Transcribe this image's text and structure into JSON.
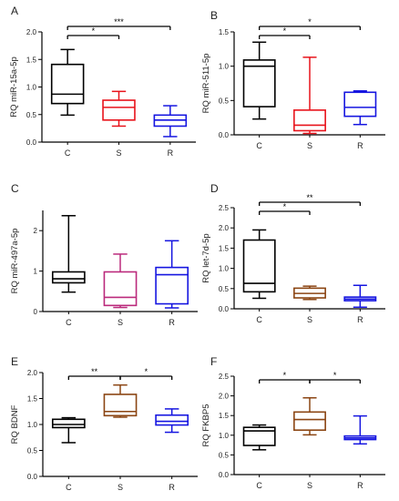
{
  "chart_data": [
    {
      "panel": "A",
      "type": "boxplot",
      "ylabel": "RQ miR-15a-5p",
      "ylim": [
        0,
        2.0
      ],
      "yticks": [
        0.0,
        0.5,
        1.0,
        1.5,
        2.0
      ],
      "categories": [
        "C",
        "S",
        "R"
      ],
      "colors": [
        "#000000",
        "#e8131b",
        "#1515e0"
      ],
      "boxes": [
        {
          "min": 0.49,
          "q1": 0.7,
          "median": 0.87,
          "q3": 1.41,
          "max": 1.68
        },
        {
          "min": 0.29,
          "q1": 0.4,
          "median": 0.63,
          "q3": 0.76,
          "max": 0.92
        },
        {
          "min": 0.1,
          "q1": 0.29,
          "median": 0.4,
          "q3": 0.49,
          "max": 0.66
        }
      ],
      "significance": [
        {
          "from": "C",
          "to": "S",
          "label": "*"
        },
        {
          "from": "C",
          "to": "R",
          "label": "***"
        }
      ]
    },
    {
      "panel": "B",
      "type": "boxplot",
      "ylabel": "RQ miR-511-5p",
      "ylim": [
        0,
        1.5
      ],
      "yticks": [
        0.0,
        0.5,
        1.0,
        1.5
      ],
      "categories": [
        "C",
        "S",
        "R"
      ],
      "colors": [
        "#000000",
        "#e8131b",
        "#1515e0"
      ],
      "boxes": [
        {
          "min": 0.23,
          "q1": 0.41,
          "median": 1.0,
          "q3": 1.09,
          "max": 1.35
        },
        {
          "min": 0.02,
          "q1": 0.06,
          "median": 0.14,
          "q3": 0.36,
          "max": 1.13
        },
        {
          "min": 0.15,
          "q1": 0.27,
          "median": 0.4,
          "q3": 0.62,
          "max": 0.64
        }
      ],
      "significance": [
        {
          "from": "C",
          "to": "S",
          "label": "*"
        },
        {
          "from": "C",
          "to": "R",
          "label": "*"
        }
      ]
    },
    {
      "panel": "C",
      "type": "boxplot",
      "ylabel": "RQ miR-497a-5p",
      "ylim": [
        0,
        2.5
      ],
      "yticks": [
        0,
        1,
        2
      ],
      "categories": [
        "C",
        "S",
        "R"
      ],
      "colors": [
        "#000000",
        "#bb2a7c",
        "#1515e0"
      ],
      "boxes": [
        {
          "min": 0.48,
          "q1": 0.71,
          "median": 0.81,
          "q3": 0.98,
          "max": 2.37
        },
        {
          "min": 0.1,
          "q1": 0.15,
          "median": 0.35,
          "q3": 0.98,
          "max": 1.42
        },
        {
          "min": 0.09,
          "q1": 0.19,
          "median": 0.91,
          "q3": 1.09,
          "max": 1.75
        }
      ],
      "significance": []
    },
    {
      "panel": "D",
      "type": "boxplot",
      "ylabel": "RQ let-7d-5p",
      "ylim": [
        0,
        2.5
      ],
      "yticks": [
        0.0,
        0.5,
        1.0,
        1.5,
        2.0,
        2.5
      ],
      "categories": [
        "C",
        "S",
        "R"
      ],
      "colors": [
        "#000000",
        "#8b4513",
        "#1515e0"
      ],
      "boxes": [
        {
          "min": 0.26,
          "q1": 0.42,
          "median": 0.63,
          "q3": 1.7,
          "max": 1.95
        },
        {
          "min": 0.23,
          "q1": 0.27,
          "median": 0.38,
          "q3": 0.51,
          "max": 0.56
        },
        {
          "min": 0.04,
          "q1": 0.2,
          "median": 0.24,
          "q3": 0.29,
          "max": 0.58
        }
      ],
      "significance": [
        {
          "from": "C",
          "to": "S",
          "label": "*"
        },
        {
          "from": "C",
          "to": "R",
          "label": "**"
        }
      ]
    },
    {
      "panel": "E",
      "type": "boxplot",
      "ylabel": "RQ BDNF",
      "ylim": [
        0,
        2.0
      ],
      "yticks": [
        0.0,
        0.5,
        1.0,
        1.5,
        2.0
      ],
      "categories": [
        "C",
        "S",
        "R"
      ],
      "colors": [
        "#000000",
        "#8b4513",
        "#1515e0"
      ],
      "boxes": [
        {
          "min": 0.65,
          "q1": 0.94,
          "median": 1.0,
          "q3": 1.1,
          "max": 1.13
        },
        {
          "min": 1.14,
          "q1": 1.17,
          "median": 1.25,
          "q3": 1.58,
          "max": 1.76
        },
        {
          "min": 0.85,
          "q1": 0.99,
          "median": 1.06,
          "q3": 1.18,
          "max": 1.3
        }
      ],
      "significance": [
        {
          "from": "C",
          "to": "S",
          "label": "**"
        },
        {
          "from": "S",
          "to": "R",
          "label": "*"
        }
      ]
    },
    {
      "panel": "F",
      "type": "boxplot",
      "ylabel": "RQ FKBP5",
      "ylim": [
        0,
        2.5
      ],
      "yticks": [
        0.0,
        0.5,
        1.0,
        1.5,
        2.0,
        2.5
      ],
      "categories": [
        "C",
        "S",
        "R"
      ],
      "colors": [
        "#000000",
        "#8b4513",
        "#1515e0"
      ],
      "boxes": [
        {
          "min": 0.63,
          "q1": 0.74,
          "median": 1.11,
          "q3": 1.2,
          "max": 1.26
        },
        {
          "min": 1.01,
          "q1": 1.13,
          "median": 1.4,
          "q3": 1.59,
          "max": 1.95
        },
        {
          "min": 0.78,
          "q1": 0.89,
          "median": 0.93,
          "q3": 0.98,
          "max": 1.49
        }
      ],
      "significance": [
        {
          "from": "C",
          "to": "S",
          "label": "*"
        },
        {
          "from": "S",
          "to": "R",
          "label": "*"
        }
      ]
    }
  ]
}
